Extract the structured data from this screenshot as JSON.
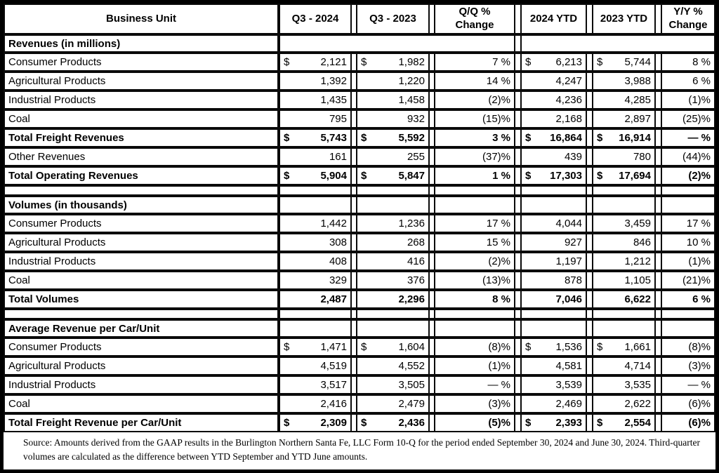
{
  "table": {
    "dollar_sign": "$",
    "headers": [
      {
        "label": "Business Unit"
      },
      {
        "label": "Q3 - 2024"
      },
      {
        "label": "Q3 - 2023"
      },
      {
        "label": "Q/Q %\nChange"
      },
      {
        "label": "2024 YTD"
      },
      {
        "label": "2023 YTD"
      },
      {
        "label": "Y/Y %\nChange"
      }
    ],
    "sections": [
      {
        "title": "Revenues (in millions)",
        "merged_title_row": true,
        "rows": [
          {
            "label": "Consumer Products",
            "bold": false,
            "dollar": true,
            "values": [
              "2,121",
              "1,982",
              "7 %",
              "6,213",
              "5,744",
              "8 %"
            ]
          },
          {
            "label": "Agricultural Products",
            "bold": false,
            "dollar": false,
            "values": [
              "1,392",
              "1,220",
              "14 %",
              "4,247",
              "3,988",
              "6 %"
            ]
          },
          {
            "label": "Industrial Products",
            "bold": false,
            "dollar": false,
            "values": [
              "1,435",
              "1,458",
              "(2)%",
              "4,236",
              "4,285",
              "(1)%"
            ]
          },
          {
            "label": "Coal",
            "bold": false,
            "dollar": false,
            "values": [
              "795",
              "932",
              "(15)%",
              "2,168",
              "2,897",
              "(25)%"
            ]
          },
          {
            "label": "Total Freight Revenues",
            "bold": true,
            "dollar": true,
            "values": [
              "5,743",
              "5,592",
              "3 %",
              "16,864",
              "16,914",
              "— %"
            ]
          },
          {
            "label": "Other Revenues",
            "bold": false,
            "dollar": false,
            "values": [
              "161",
              "255",
              "(37)%",
              "439",
              "780",
              "(44)%"
            ]
          },
          {
            "label": "Total Operating Revenues",
            "bold": true,
            "dollar": true,
            "values": [
              "5,904",
              "5,847",
              "1 %",
              "17,303",
              "17,694",
              "(2)%"
            ]
          }
        ]
      },
      {
        "title": "Volumes (in thousands)",
        "merged_title_row": false,
        "rows": [
          {
            "label": "Consumer Products",
            "bold": false,
            "dollar": false,
            "values": [
              "1,442",
              "1,236",
              "17 %",
              "4,044",
              "3,459",
              "17 %"
            ]
          },
          {
            "label": "Agricultural Products",
            "bold": false,
            "dollar": false,
            "values": [
              "308",
              "268",
              "15 %",
              "927",
              "846",
              "10 %"
            ]
          },
          {
            "label": "Industrial Products",
            "bold": false,
            "dollar": false,
            "values": [
              "408",
              "416",
              "(2)%",
              "1,197",
              "1,212",
              "(1)%"
            ]
          },
          {
            "label": "Coal",
            "bold": false,
            "dollar": false,
            "values": [
              "329",
              "376",
              "(13)%",
              "878",
              "1,105",
              "(21)%"
            ]
          },
          {
            "label": "Total Volumes",
            "bold": true,
            "dollar": false,
            "values": [
              "2,487",
              "2,296",
              "8 %",
              "7,046",
              "6,622",
              "6 %"
            ]
          }
        ]
      },
      {
        "title": "Average Revenue per Car/Unit",
        "merged_title_row": false,
        "rows": [
          {
            "label": "Consumer Products",
            "bold": false,
            "dollar": true,
            "values": [
              "1,471",
              "1,604",
              "(8)%",
              "1,536",
              "1,661",
              "(8)%"
            ]
          },
          {
            "label": "Agricultural Products",
            "bold": false,
            "dollar": false,
            "values": [
              "4,519",
              "4,552",
              "(1)%",
              "4,581",
              "4,714",
              "(3)%"
            ]
          },
          {
            "label": "Industrial Products",
            "bold": false,
            "dollar": false,
            "values": [
              "3,517",
              "3,505",
              "— %",
              "3,539",
              "3,535",
              "— %"
            ]
          },
          {
            "label": "Coal",
            "bold": false,
            "dollar": false,
            "values": [
              "2,416",
              "2,479",
              "(3)%",
              "2,469",
              "2,622",
              "(6)%"
            ]
          },
          {
            "label": "Total Freight Revenue per Car/Unit",
            "bold": true,
            "dollar": true,
            "values": [
              "2,309",
              "2,436",
              "(5)%",
              "2,393",
              "2,554",
              "(6)%"
            ]
          }
        ]
      }
    ]
  },
  "footnote": {
    "text": "Source: Amounts derived from the GAAP results in the Burlington Northern Santa Fe, LLC Form 10-Q for the period ended September 30, 2024 and June 30, 2024. Third-quarter volumes are calculated as the difference between YTD September and YTD June amounts."
  }
}
